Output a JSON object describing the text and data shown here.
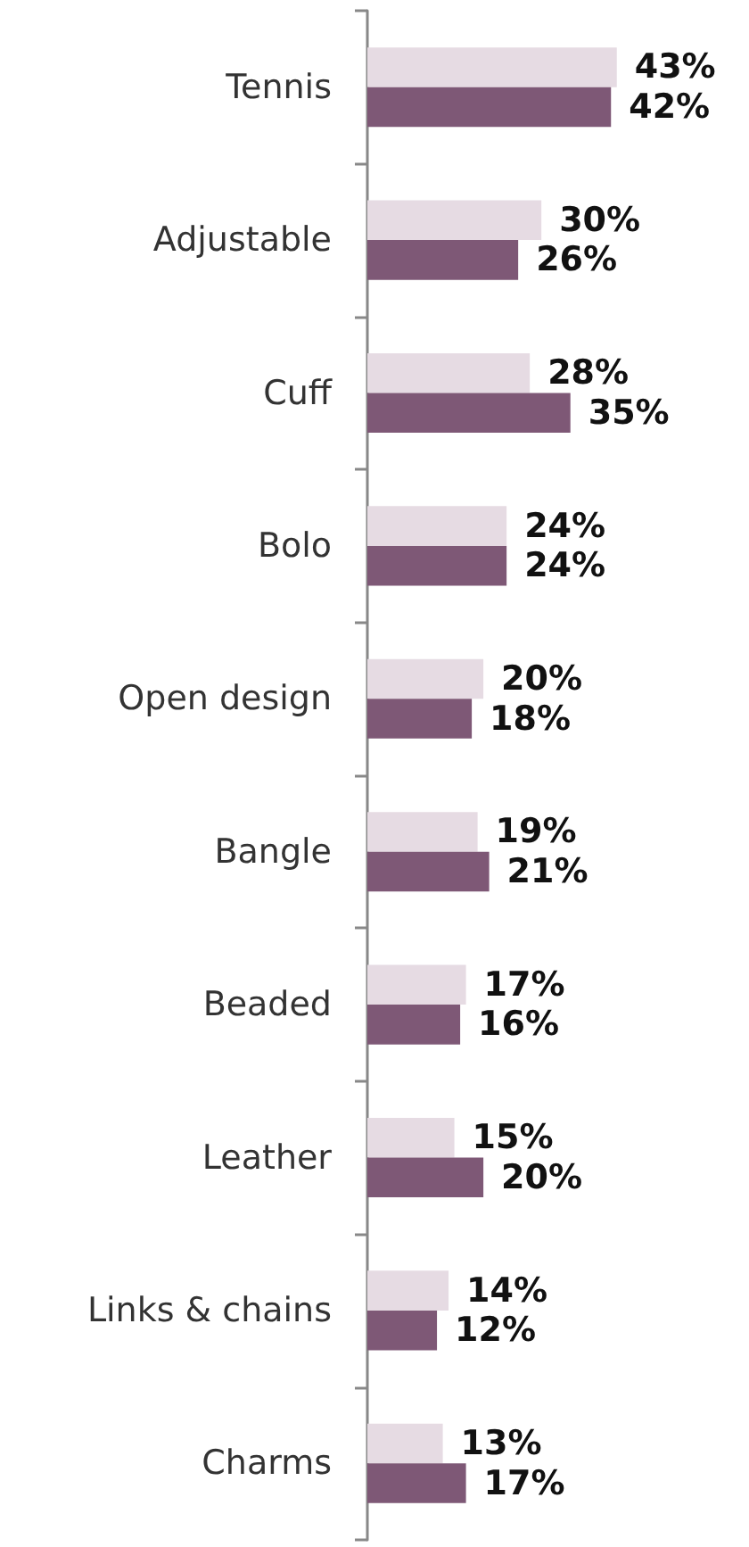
{
  "chart_data": {
    "type": "bar",
    "orientation": "horizontal",
    "categories": [
      "Tennis",
      "Adjustable",
      "Cuff",
      "Bolo",
      "Open design",
      "Bangle",
      "Beaded",
      "Leather",
      "Links & chains",
      "Charms"
    ],
    "series": [
      {
        "color": "#e6dbe3",
        "values": [
          43,
          30,
          28,
          24,
          20,
          19,
          17,
          15,
          14,
          13
        ],
        "value_labels": [
          "43%",
          "30%",
          "28%",
          "24%",
          "20%",
          "19%",
          "17%",
          "15%",
          "14%",
          "13%"
        ]
      },
      {
        "color": "#7e5876",
        "values": [
          42,
          26,
          35,
          24,
          18,
          21,
          16,
          20,
          12,
          17
        ],
        "value_labels": [
          "42%",
          "26%",
          "35%",
          "24%",
          "18%",
          "21%",
          "16%",
          "20%",
          "12%",
          "17%"
        ]
      }
    ],
    "grid": false
  }
}
